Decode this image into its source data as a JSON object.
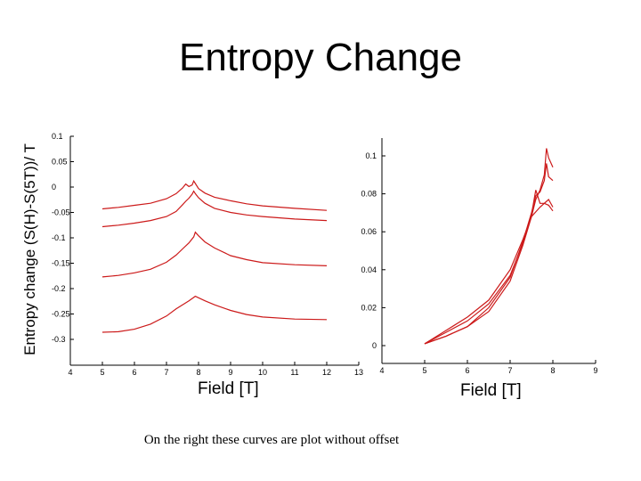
{
  "title": "Entropy Change",
  "caption": "On the right these curves are plot without offset",
  "colors": {
    "curve": "#cc1a1a",
    "axis": "#000000"
  },
  "chart_data": [
    {
      "type": "line",
      "panel": "left",
      "xlabel": "Field [T]",
      "ylabel": "Entropy change (S(H)-S(5T))/ T",
      "xlim": [
        4,
        13
      ],
      "ylim": [
        -0.35,
        0.1
      ],
      "x_ticks": [
        4,
        5,
        6,
        7,
        8,
        9,
        10,
        11,
        12,
        13
      ],
      "y_ticks": [
        0.1,
        0.05,
        0,
        -0.05,
        -0.1,
        -0.15,
        -0.2,
        -0.25,
        -0.3
      ],
      "grid": false,
      "series": [
        {
          "x": [
            5.0,
            5.5,
            6.0,
            6.5,
            7.0,
            7.3,
            7.5,
            7.6,
            7.7,
            7.8,
            7.85,
            7.9,
            8.0,
            8.2,
            8.5,
            9.0,
            9.5,
            10.0,
            11.0,
            12.0
          ],
          "y": [
            -0.043,
            -0.04,
            -0.036,
            -0.032,
            -0.023,
            -0.013,
            -0.002,
            0.006,
            0.001,
            0.004,
            0.012,
            0.007,
            -0.003,
            -0.012,
            -0.02,
            -0.027,
            -0.033,
            -0.037,
            -0.042,
            -0.046
          ]
        },
        {
          "x": [
            5.0,
            5.5,
            6.0,
            6.5,
            7.0,
            7.3,
            7.5,
            7.6,
            7.7,
            7.8,
            7.85,
            7.9,
            8.0,
            8.2,
            8.5,
            9.0,
            9.5,
            10.0,
            11.0,
            12.0
          ],
          "y": [
            -0.078,
            -0.075,
            -0.071,
            -0.066,
            -0.058,
            -0.048,
            -0.035,
            -0.028,
            -0.022,
            -0.014,
            -0.008,
            -0.013,
            -0.021,
            -0.032,
            -0.042,
            -0.05,
            -0.055,
            -0.058,
            -0.063,
            -0.066
          ]
        },
        {
          "x": [
            5.0,
            5.5,
            6.0,
            6.5,
            7.0,
            7.3,
            7.5,
            7.7,
            7.85,
            7.9,
            8.0,
            8.2,
            8.5,
            9.0,
            9.5,
            10.0,
            11.0,
            12.0
          ],
          "y": [
            -0.177,
            -0.174,
            -0.169,
            -0.162,
            -0.148,
            -0.134,
            -0.122,
            -0.11,
            -0.098,
            -0.089,
            -0.096,
            -0.108,
            -0.12,
            -0.135,
            -0.143,
            -0.149,
            -0.153,
            -0.155
          ]
        },
        {
          "x": [
            5.0,
            5.5,
            6.0,
            6.5,
            7.0,
            7.3,
            7.5,
            7.7,
            7.9,
            8.0,
            8.2,
            8.5,
            9.0,
            9.5,
            10.0,
            11.0,
            12.0
          ],
          "y": [
            -0.286,
            -0.285,
            -0.28,
            -0.27,
            -0.254,
            -0.24,
            -0.232,
            -0.224,
            -0.215,
            -0.218,
            -0.224,
            -0.232,
            -0.243,
            -0.251,
            -0.256,
            -0.26,
            -0.261
          ]
        }
      ]
    },
    {
      "type": "line",
      "panel": "right",
      "xlabel": "Field [T]",
      "ylabel": "",
      "xlim": [
        4,
        9
      ],
      "ylim": [
        0,
        0.1
      ],
      "x_ticks": [
        4,
        5,
        6,
        7,
        8,
        9
      ],
      "y_ticks": [
        0.1,
        0.08,
        0.06,
        0.04,
        0.02,
        0
      ],
      "grid": false,
      "series": [
        {
          "x": [
            5.0,
            5.5,
            6.0,
            6.5,
            7.0,
            7.3,
            7.5,
            7.6,
            7.7,
            7.8,
            7.85,
            7.9,
            8.0
          ],
          "y": [
            0.001,
            0.005,
            0.01,
            0.018,
            0.034,
            0.053,
            0.068,
            0.077,
            0.082,
            0.09,
            0.104,
            0.099,
            0.094
          ]
        },
        {
          "x": [
            5.0,
            5.5,
            6.0,
            6.5,
            7.0,
            7.3,
            7.5,
            7.6,
            7.7,
            7.8,
            7.85,
            7.9,
            8.0
          ],
          "y": [
            0.001,
            0.005,
            0.01,
            0.02,
            0.036,
            0.055,
            0.07,
            0.079,
            0.081,
            0.087,
            0.096,
            0.089,
            0.087
          ]
        },
        {
          "x": [
            5.0,
            5.5,
            6.0,
            6.5,
            7.0,
            7.3,
            7.5,
            7.6,
            7.7,
            7.8,
            7.9,
            8.0
          ],
          "y": [
            0.001,
            0.007,
            0.013,
            0.022,
            0.037,
            0.054,
            0.069,
            0.082,
            0.075,
            0.075,
            0.074,
            0.071
          ]
        },
        {
          "x": [
            5.0,
            5.5,
            6.0,
            6.5,
            7.0,
            7.3,
            7.5,
            7.7,
            7.9,
            8.0
          ],
          "y": [
            0.001,
            0.008,
            0.015,
            0.024,
            0.04,
            0.056,
            0.068,
            0.073,
            0.077,
            0.073
          ]
        }
      ]
    }
  ]
}
